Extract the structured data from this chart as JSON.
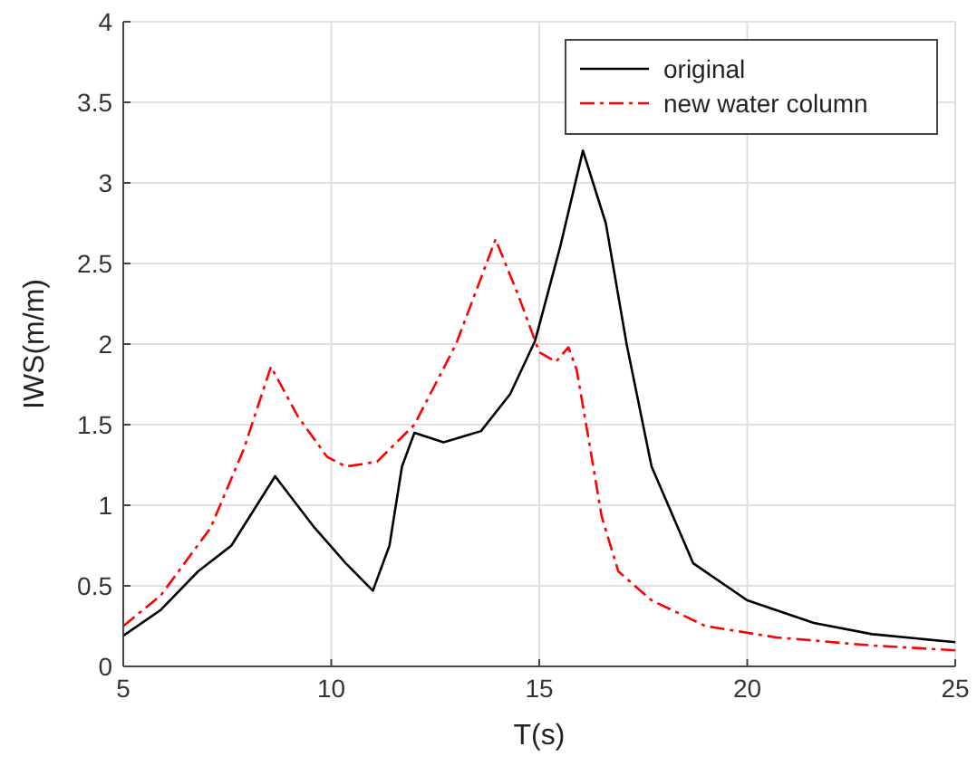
{
  "chart_data": {
    "type": "line",
    "xlabel": "T(s)",
    "ylabel": "IWS(m/m)",
    "xlim": [
      5,
      25
    ],
    "ylim": [
      0,
      4
    ],
    "xticks": [
      5,
      10,
      15,
      20,
      25
    ],
    "yticks": [
      0,
      0.5,
      1,
      1.5,
      2,
      2.5,
      3,
      3.5,
      4
    ],
    "grid": true,
    "legend": "top right",
    "series": [
      {
        "name": "original",
        "color": "#000000",
        "line_style": "solid",
        "x": [
          5,
          5.9,
          6.8,
          7.6,
          8.65,
          9.6,
          10.35,
          11,
          11.4,
          11.7,
          12,
          12.7,
          13.6,
          14.3,
          14.9,
          15.5,
          16.05,
          16.6,
          17.1,
          17.7,
          18.7,
          20,
          21.6,
          23,
          25
        ],
        "values": [
          0.19,
          0.35,
          0.59,
          0.75,
          1.18,
          0.86,
          0.64,
          0.47,
          0.75,
          1.24,
          1.45,
          1.39,
          1.46,
          1.69,
          2.02,
          2.6,
          3.2,
          2.75,
          2,
          1.24,
          0.64,
          0.41,
          0.27,
          0.2,
          0.15
        ]
      },
      {
        "name": "new water column",
        "color": "#ff0000",
        "line_style": "dashdot",
        "x": [
          5,
          5.9,
          7.1,
          7.9,
          8.55,
          9.2,
          9.9,
          10.35,
          11.1,
          12,
          13,
          13.95,
          14.5,
          15,
          15.4,
          15.7,
          15.9,
          16.2,
          16.5,
          16.9,
          17.7,
          19,
          20.7,
          23,
          25
        ],
        "values": [
          0.25,
          0.44,
          0.86,
          1.35,
          1.86,
          1.55,
          1.3,
          1.24,
          1.27,
          1.5,
          2,
          2.65,
          2.3,
          1.95,
          1.89,
          1.98,
          1.84,
          1.39,
          0.93,
          0.59,
          0.41,
          0.25,
          0.18,
          0.13,
          0.1
        ]
      }
    ]
  }
}
